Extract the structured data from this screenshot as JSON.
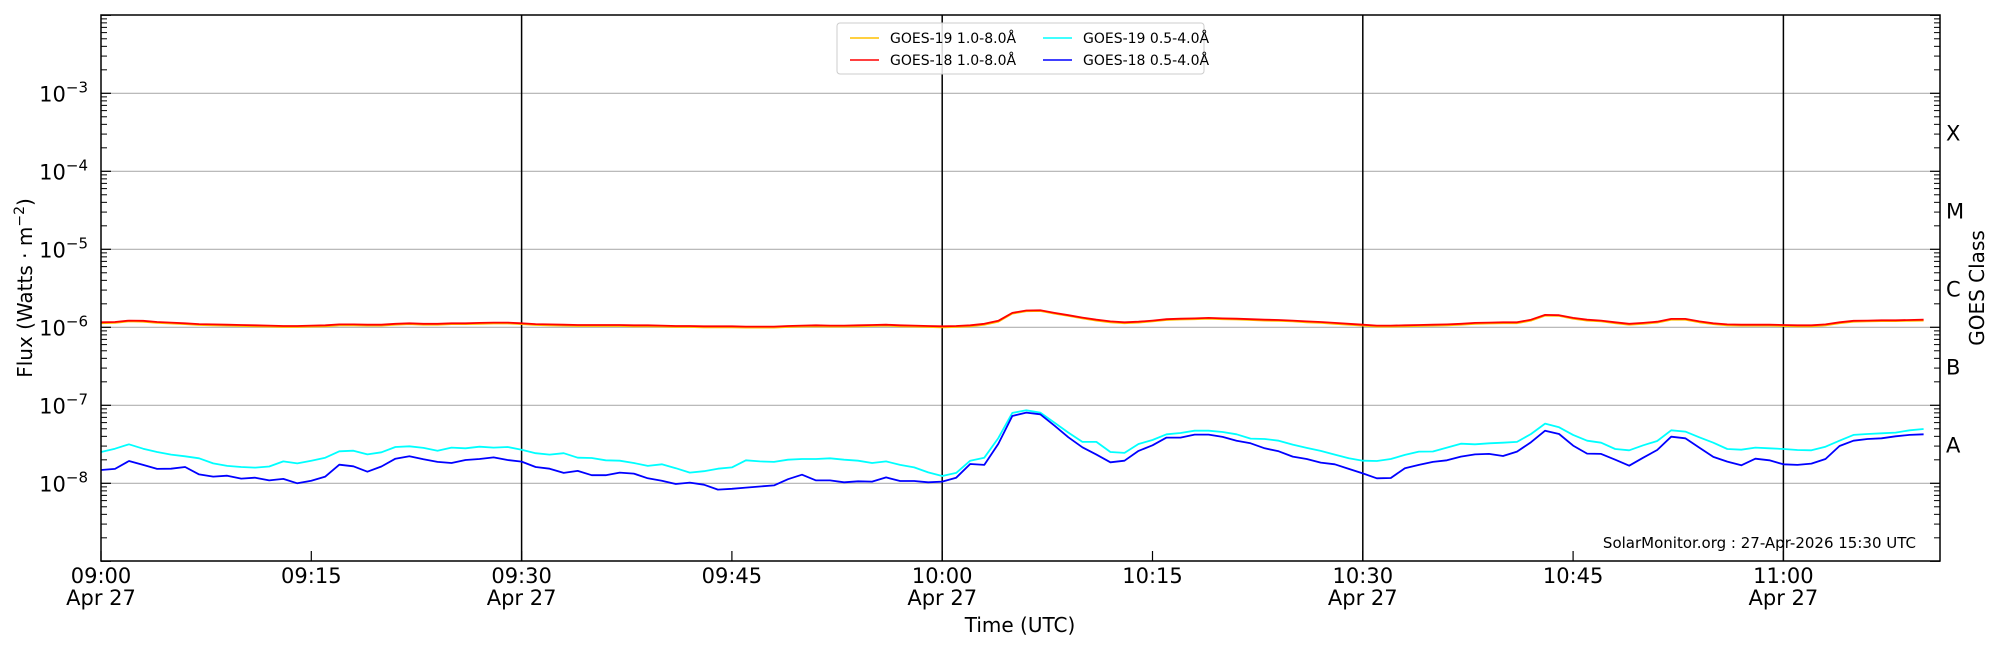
{
  "chart_data": {
    "type": "line",
    "xlabel": "Time (UTC)",
    "ylabel": "Flux (Watts · m",
    "ylabel_sup": "−2",
    "ylabel_end": ")",
    "right_label": "GOES Class",
    "yscale": "log",
    "ylim": [
      1e-09,
      0.01
    ],
    "xlim": [
      "09:00",
      "11:11"
    ],
    "x_start": "2026-04-27 09:00",
    "x_interval_minutes": 1,
    "grid": "horizontal at decades",
    "legend_position": "top-center",
    "x_ticks": [
      {
        "m": 0,
        "time": "09:00",
        "date": "Apr 27"
      },
      {
        "m": 15,
        "time": "09:15",
        "date": ""
      },
      {
        "m": 30,
        "time": "09:30",
        "date": "Apr 27"
      },
      {
        "m": 45,
        "time": "09:45",
        "date": ""
      },
      {
        "m": 60,
        "time": "10:00",
        "date": "Apr 27"
      },
      {
        "m": 75,
        "time": "10:15",
        "date": ""
      },
      {
        "m": 90,
        "time": "10:30",
        "date": "Apr 27"
      },
      {
        "m": 105,
        "time": "10:45",
        "date": ""
      },
      {
        "m": 120,
        "time": "11:00",
        "date": "Apr 27"
      }
    ],
    "vertical_lines_minutes": [
      30,
      60,
      90,
      120
    ],
    "y_ticks": [
      {
        "exp_value": -8,
        "base": "10",
        "exp": "−8"
      },
      {
        "exp_value": -7,
        "base": "10",
        "exp": "−7"
      },
      {
        "exp_value": -6,
        "base": "10",
        "exp": "−6"
      },
      {
        "exp_value": -5,
        "base": "10",
        "exp": "−5"
      },
      {
        "exp_value": -4,
        "base": "10",
        "exp": "−4"
      },
      {
        "exp_value": -3,
        "base": "10",
        "exp": "−3"
      }
    ],
    "goes_classes": [
      {
        "label": "A",
        "exp_value": -7.5
      },
      {
        "label": "B",
        "exp_value": -6.5
      },
      {
        "label": "C",
        "exp_value": -5.5
      },
      {
        "label": "M",
        "exp_value": -4.5
      },
      {
        "label": "X",
        "exp_value": -3.5
      }
    ],
    "series": [
      {
        "name": "GOES-19 1.0-8.0Å",
        "color": "#ffc000",
        "values": [
          1.13e-06,
          1.14e-06,
          1.19e-06,
          1.18e-06,
          1.14e-06,
          1.12e-06,
          1.1e-06,
          1.07e-06,
          1.06e-06,
          1.05e-06,
          1.04e-06,
          1.03e-06,
          1.02e-06,
          1.01e-06,
          1.01e-06,
          1.02e-06,
          1.03e-06,
          1.06e-06,
          1.06e-06,
          1.05e-06,
          1.05e-06,
          1.08e-06,
          1.1e-06,
          1.08e-06,
          1.08e-06,
          1.1e-06,
          1.1e-06,
          1.11e-06,
          1.12e-06,
          1.12e-06,
          1.1e-06,
          1.07e-06,
          1.06e-06,
          1.05e-06,
          1.04e-06,
          1.04e-06,
          1.04e-06,
          1.04e-06,
          1.03e-06,
          1.03e-06,
          1.02e-06,
          1.01e-06,
          1.01e-06,
          1e-06,
          1e-06,
          1e-06,
          9.9e-07,
          9.9e-07,
          9.9e-07,
          1.01e-06,
          1.02e-06,
          1.03e-06,
          1.02e-06,
          1.02e-06,
          1.03e-06,
          1.04e-06,
          1.05e-06,
          1.03e-06,
          1.02e-06,
          1.01e-06,
          1e-06,
          1.01e-06,
          1.03e-06,
          1.08e-06,
          1.18e-06,
          1.5e-06,
          1.61e-06,
          1.62e-06,
          1.5e-06,
          1.4e-06,
          1.3e-06,
          1.22e-06,
          1.16e-06,
          1.13e-06,
          1.15e-06,
          1.19e-06,
          1.24e-06,
          1.26e-06,
          1.27e-06,
          1.29e-06,
          1.27e-06,
          1.26e-06,
          1.24e-06,
          1.22e-06,
          1.21e-06,
          1.19e-06,
          1.16e-06,
          1.14e-06,
          1.11e-06,
          1.08e-06,
          1.05e-06,
          1.02e-06,
          1.02e-06,
          1.03e-06,
          1.04e-06,
          1.05e-06,
          1.06e-06,
          1.08e-06,
          1.11e-06,
          1.12e-06,
          1.13e-06,
          1.13e-06,
          1.22e-06,
          1.41e-06,
          1.4e-06,
          1.29e-06,
          1.22e-06,
          1.19e-06,
          1.13e-06,
          1.08e-06,
          1.11e-06,
          1.15e-06,
          1.25e-06,
          1.25e-06,
          1.16e-06,
          1.1e-06,
          1.06e-06,
          1.05e-06,
          1.05e-06,
          1.05e-06,
          1.04e-06,
          1.03e-06,
          1.03e-06,
          1.06e-06,
          1.13e-06,
          1.18e-06,
          1.19e-06,
          1.2e-06,
          1.2e-06,
          1.21e-06,
          1.22e-06
        ]
      },
      {
        "name": "GOES-18 1.0-8.0Å",
        "color": "#ff0000",
        "values": [
          1.16e-06,
          1.17e-06,
          1.22e-06,
          1.21e-06,
          1.17e-06,
          1.15e-06,
          1.125e-06,
          1.1e-06,
          1.09e-06,
          1.08e-06,
          1.07e-06,
          1.06e-06,
          1.05e-06,
          1.04e-06,
          1.04e-06,
          1.05e-06,
          1.06e-06,
          1.09e-06,
          1.09e-06,
          1.08e-06,
          1.08e-06,
          1.11e-06,
          1.125e-06,
          1.11e-06,
          1.11e-06,
          1.125e-06,
          1.125e-06,
          1.14e-06,
          1.15e-06,
          1.15e-06,
          1.125e-06,
          1.1e-06,
          1.09e-06,
          1.08e-06,
          1.07e-06,
          1.07e-06,
          1.07e-06,
          1.07e-06,
          1.06e-06,
          1.06e-06,
          1.05e-06,
          1.04e-06,
          1.04e-06,
          1.03e-06,
          1.03e-06,
          1.03e-06,
          1.02e-06,
          1.02e-06,
          1.02e-06,
          1.04e-06,
          1.05e-06,
          1.06e-06,
          1.05e-06,
          1.05e-06,
          1.06e-06,
          1.07e-06,
          1.08e-06,
          1.06e-06,
          1.05e-06,
          1.04e-06,
          1.03e-06,
          1.04e-06,
          1.06e-06,
          1.11e-06,
          1.21e-06,
          1.53e-06,
          1.64e-06,
          1.65e-06,
          1.53e-06,
          1.43e-06,
          1.33e-06,
          1.25e-06,
          1.19e-06,
          1.16e-06,
          1.18e-06,
          1.22e-06,
          1.27e-06,
          1.29e-06,
          1.3e-06,
          1.32e-06,
          1.3e-06,
          1.29e-06,
          1.27e-06,
          1.25e-06,
          1.24e-06,
          1.22e-06,
          1.19e-06,
          1.17e-06,
          1.14e-06,
          1.11e-06,
          1.08e-06,
          1.05e-06,
          1.05e-06,
          1.06e-06,
          1.07e-06,
          1.08e-06,
          1.09e-06,
          1.11e-06,
          1.14e-06,
          1.15e-06,
          1.16e-06,
          1.16e-06,
          1.25e-06,
          1.44e-06,
          1.43e-06,
          1.32e-06,
          1.25e-06,
          1.22e-06,
          1.16e-06,
          1.11e-06,
          1.14e-06,
          1.18e-06,
          1.28e-06,
          1.28e-06,
          1.19e-06,
          1.125e-06,
          1.09e-06,
          1.08e-06,
          1.08e-06,
          1.08e-06,
          1.07e-06,
          1.06e-06,
          1.06e-06,
          1.09e-06,
          1.16e-06,
          1.21e-06,
          1.22e-06,
          1.23e-06,
          1.23e-06,
          1.24e-06,
          1.25e-06
        ]
      },
      {
        "name": "GOES-19 0.5-4.0Å",
        "color": "#00ffff",
        "values": [
          2.52e-08,
          2.78e-08,
          3.16e-08,
          2.78e-08,
          2.52e-08,
          2.33e-08,
          2.22e-08,
          2.09e-08,
          1.8e-08,
          1.67e-08,
          1.62e-08,
          1.59e-08,
          1.64e-08,
          1.91e-08,
          1.8e-08,
          1.95e-08,
          2.13e-08,
          2.57e-08,
          2.62e-08,
          2.35e-08,
          2.5e-08,
          2.92e-08,
          2.98e-08,
          2.84e-08,
          2.62e-08,
          2.87e-08,
          2.81e-08,
          2.95e-08,
          2.87e-08,
          2.92e-08,
          2.7e-08,
          2.43e-08,
          2.33e-08,
          2.43e-08,
          2.13e-08,
          2.11e-08,
          1.97e-08,
          1.95e-08,
          1.82e-08,
          1.67e-08,
          1.75e-08,
          1.56e-08,
          1.37e-08,
          1.43e-08,
          1.54e-08,
          1.6e-08,
          1.97e-08,
          1.91e-08,
          1.88e-08,
          2.01e-08,
          2.05e-08,
          2.05e-08,
          2.09e-08,
          2.01e-08,
          1.95e-08,
          1.82e-08,
          1.91e-08,
          1.72e-08,
          1.6e-08,
          1.38e-08,
          1.24e-08,
          1.36e-08,
          1.95e-08,
          2.13e-08,
          3.8e-08,
          7.98e-08,
          8.63e-08,
          8.05e-08,
          6e-08,
          4.47e-08,
          3.39e-08,
          3.39e-08,
          2.52e-08,
          2.45e-08,
          3.19e-08,
          3.59e-08,
          4.25e-08,
          4.42e-08,
          4.73e-08,
          4.73e-08,
          4.55e-08,
          4.25e-08,
          3.74e-08,
          3.7e-08,
          3.52e-08,
          3.13e-08,
          2.84e-08,
          2.6e-08,
          2.33e-08,
          2.09e-08,
          1.95e-08,
          1.93e-08,
          2.05e-08,
          2.31e-08,
          2.55e-08,
          2.56e-08,
          2.87e-08,
          3.22e-08,
          3.16e-08,
          3.26e-08,
          3.32e-08,
          3.39e-08,
          4.29e-08,
          5.82e-08,
          5.22e-08,
          4.17e-08,
          3.52e-08,
          3.32e-08,
          2.75e-08,
          2.65e-08,
          3.07e-08,
          3.49e-08,
          4.78e-08,
          4.6e-08,
          3.89e-08,
          3.32e-08,
          2.75e-08,
          2.7e-08,
          2.87e-08,
          2.81e-08,
          2.75e-08,
          2.67e-08,
          2.65e-08,
          2.95e-08,
          3.52e-08,
          4.17e-08,
          4.29e-08,
          4.38e-08,
          4.47e-08,
          4.78e-08,
          4.97e-08
        ]
      },
      {
        "name": "GOES-18 0.5-4.0Å",
        "color": "#0000ff",
        "values": [
          1.48e-08,
          1.53e-08,
          1.93e-08,
          1.72e-08,
          1.53e-08,
          1.54e-08,
          1.62e-08,
          1.3e-08,
          1.22e-08,
          1.25e-08,
          1.15e-08,
          1.18e-08,
          1.09e-08,
          1.14e-08,
          1e-08,
          1.08e-08,
          1.22e-08,
          1.73e-08,
          1.65e-08,
          1.41e-08,
          1.64e-08,
          2.07e-08,
          2.22e-08,
          2.03e-08,
          1.88e-08,
          1.82e-08,
          1.99e-08,
          2.05e-08,
          2.15e-08,
          1.99e-08,
          1.9e-08,
          1.62e-08,
          1.54e-08,
          1.36e-08,
          1.44e-08,
          1.27e-08,
          1.27e-08,
          1.37e-08,
          1.33e-08,
          1.16e-08,
          1.08e-08,
          9.8e-09,
          1.02e-08,
          9.6e-09,
          8.3e-09,
          8.5e-09,
          8.8e-09,
          9.1e-09,
          9.4e-09,
          1.13e-08,
          1.29e-08,
          1.09e-08,
          1.09e-08,
          1.03e-08,
          1.06e-08,
          1.05e-08,
          1.19e-08,
          1.07e-08,
          1.07e-08,
          1.03e-08,
          1.05e-08,
          1.18e-08,
          1.77e-08,
          1.72e-08,
          3.2e-08,
          7.3e-08,
          8.05e-08,
          7.67e-08,
          5.49e-08,
          3.89e-08,
          2.89e-08,
          2.33e-08,
          1.86e-08,
          1.95e-08,
          2.6e-08,
          3.07e-08,
          3.85e-08,
          3.85e-08,
          4.21e-08,
          4.21e-08,
          3.93e-08,
          3.52e-08,
          3.26e-08,
          2.81e-08,
          2.57e-08,
          2.2e-08,
          2.05e-08,
          1.84e-08,
          1.75e-08,
          1.53e-08,
          1.34e-08,
          1.16e-08,
          1.17e-08,
          1.56e-08,
          1.72e-08,
          1.88e-08,
          1.97e-08,
          2.2e-08,
          2.35e-08,
          2.38e-08,
          2.24e-08,
          2.55e-08,
          3.36e-08,
          4.73e-08,
          4.29e-08,
          3.04e-08,
          2.4e-08,
          2.38e-08,
          2.01e-08,
          1.68e-08,
          2.13e-08,
          2.67e-08,
          3.96e-08,
          3.77e-08,
          2.87e-08,
          2.18e-08,
          1.9e-08,
          1.7e-08,
          2.07e-08,
          1.97e-08,
          1.75e-08,
          1.72e-08,
          1.79e-08,
          2.05e-08,
          3.01e-08,
          3.52e-08,
          3.7e-08,
          3.77e-08,
          4.01e-08,
          4.17e-08,
          4.25e-08
        ]
      }
    ]
  },
  "watermark": "SolarMonitor.org : 27-Apr-2026 15:30 UTC"
}
